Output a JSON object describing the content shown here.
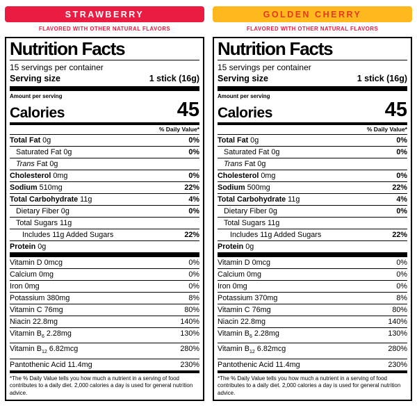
{
  "panels": [
    {
      "flavor": "STRAWBERRY",
      "flavor_bg": "#ea1c42",
      "flavor_text_color": "#ffffff",
      "subheader": "FLAVORED WITH OTHER NATURAL FLAVORS",
      "subheader_color": "#e8173d",
      "title": "Nutrition Facts",
      "servings_per_container": "15 servings per container",
      "serving_size_label": "Serving size",
      "serving_size_value": "1 stick (16g)",
      "amount_per_serving": "Amount per serving",
      "calories_label": "Calories",
      "calories_value": "45",
      "daily_value_header": "% Daily Value*",
      "nutrients": [
        {
          "name": "Total Fat",
          "amount": "0g",
          "dv": "0%",
          "bold": true,
          "dvb": true,
          "indent": 0
        },
        {
          "name": "Saturated Fat",
          "amount": "0g",
          "dv": "0%",
          "dvb": true,
          "indent": 1
        },
        {
          "name": "Trans",
          "italic": true,
          "amount": "Fat 0g",
          "dv": "",
          "indent": 1
        },
        {
          "name": "Cholesterol",
          "amount": "0mg",
          "dv": "0%",
          "bold": true,
          "dvb": true,
          "indent": 0
        },
        {
          "name": "Sodium",
          "amount": "510mg",
          "dv": "22%",
          "bold": true,
          "dvb": true,
          "indent": 0
        },
        {
          "name": "Total Carbohydrate",
          "amount": "11g",
          "dv": "4%",
          "bold": true,
          "dvb": true,
          "indent": 0
        },
        {
          "name": "Dietary Fiber",
          "amount": "0g",
          "dv": "0%",
          "dvb": true,
          "indent": 1
        },
        {
          "name": "Total Sugars",
          "amount": "11g",
          "dv": "",
          "indent": 1
        },
        {
          "name": "Includes 11g Added Sugars",
          "amount": "",
          "dv": "22%",
          "dvb": true,
          "indent": 2
        },
        {
          "name": "Protein",
          "amount": "0g",
          "dv": "",
          "bold": true,
          "indent": 0
        }
      ],
      "vitamins": [
        {
          "name": "Vitamin D",
          "amount": "0mcg",
          "dv": "0%"
        },
        {
          "name": "Calcium",
          "amount": "0mg",
          "dv": "0%"
        },
        {
          "name": "Iron",
          "amount": "0mg",
          "dv": "0%"
        },
        {
          "name": "Potassium",
          "amount": "380mg",
          "dv": "8%"
        },
        {
          "name": "Vitamin C",
          "amount": "76mg",
          "dv": "80%"
        },
        {
          "name": "Niacin",
          "amount": "22.8mg",
          "dv": "140%"
        },
        {
          "name": "Vitamin B",
          "sub": "6",
          "amount": "2.28mg",
          "dv": "130%"
        },
        {
          "name": "Vitamin B",
          "sub": "12",
          "amount": "6.82mcg",
          "dv": "280%"
        },
        {
          "name": "Pantothenic Acid",
          "amount": "11.4mg",
          "dv": "230%"
        }
      ],
      "footnote": "*The % Daily Value tells you how much a nutrient in a serving of food contributes to a daily diet. 2,000 calories a day is used for general nutrition advice."
    },
    {
      "flavor": "GOLDEN CHERRY",
      "flavor_bg": "#ffb81e",
      "flavor_text_color": "#e03a1f",
      "subheader": "FLAVORED WITH OTHER NATURAL FLAVORS",
      "subheader_color": "#e8173d",
      "title": "Nutrition Facts",
      "servings_per_container": "15 servings per container",
      "serving_size_label": "Serving size",
      "serving_size_value": "1 stick (16g)",
      "amount_per_serving": "Amount per serving",
      "calories_label": "Calories",
      "calories_value": "45",
      "daily_value_header": "% Daily Value*",
      "nutrients": [
        {
          "name": "Total Fat",
          "amount": "0g",
          "dv": "0%",
          "bold": true,
          "dvb": true,
          "indent": 0
        },
        {
          "name": "Saturated Fat",
          "amount": "0g",
          "dv": "0%",
          "dvb": true,
          "indent": 1
        },
        {
          "name": "Trans",
          "italic": true,
          "amount": "Fat 0g",
          "dv": "",
          "indent": 1
        },
        {
          "name": "Cholesterol",
          "amount": "0mg",
          "dv": "0%",
          "bold": true,
          "dvb": true,
          "indent": 0
        },
        {
          "name": "Sodium",
          "amount": "500mg",
          "dv": "22%",
          "bold": true,
          "dvb": true,
          "indent": 0
        },
        {
          "name": "Total Carbohydrate",
          "amount": "11g",
          "dv": "4%",
          "bold": true,
          "dvb": true,
          "indent": 0
        },
        {
          "name": "Dietary Fiber",
          "amount": "0g",
          "dv": "0%",
          "dvb": true,
          "indent": 1
        },
        {
          "name": "Total Sugars",
          "amount": "11g",
          "dv": "",
          "indent": 1
        },
        {
          "name": "Includes 11g Added Sugars",
          "amount": "",
          "dv": "22%",
          "dvb": true,
          "indent": 2
        },
        {
          "name": "Protein",
          "amount": "0g",
          "dv": "",
          "bold": true,
          "indent": 0
        }
      ],
      "vitamins": [
        {
          "name": "Vitamin D",
          "amount": "0mcg",
          "dv": "0%"
        },
        {
          "name": "Calcium",
          "amount": "0mg",
          "dv": "0%"
        },
        {
          "name": "Iron",
          "amount": "0mg",
          "dv": "0%"
        },
        {
          "name": "Potassium",
          "amount": "370mg",
          "dv": "8%"
        },
        {
          "name": "Vitamin C",
          "amount": "76mg",
          "dv": "80%"
        },
        {
          "name": "Niacin",
          "amount": "22.8mg",
          "dv": "140%"
        },
        {
          "name": "Vitamin B",
          "sub": "6",
          "amount": "2.28mg",
          "dv": "130%"
        },
        {
          "name": "Vitamin B",
          "sub": "12",
          "amount": "6.82mcg",
          "dv": "280%"
        },
        {
          "name": "Pantothenic Acid",
          "amount": "11.4mg",
          "dv": "230%"
        }
      ],
      "footnote": "*The % Daily Value tells you how much a nutrient in a serving of food contributes to a daily diet. 2,000 calories a day is used for general nutrition advice."
    }
  ]
}
